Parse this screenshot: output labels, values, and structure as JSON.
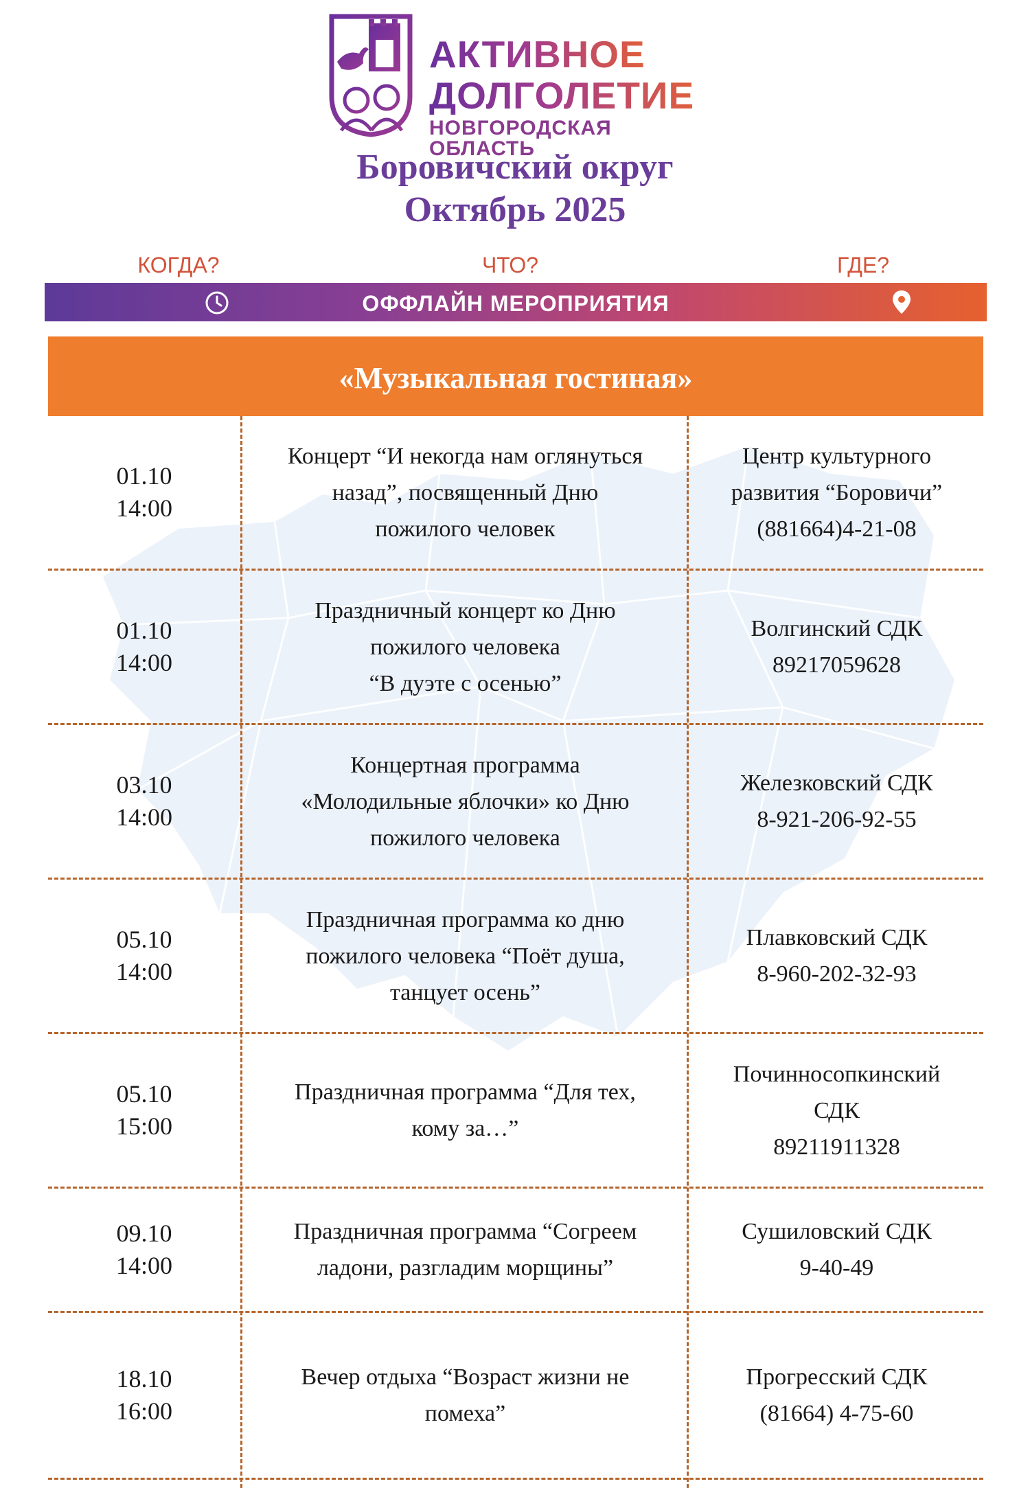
{
  "logo": {
    "line1": "АКТИВНОЕ",
    "line2": "ДОЛГОЛЕТИЕ",
    "line3": "НОВГОРОДСКАЯ ОБЛАСТЬ",
    "emblem_icon": "tower-bird-elderly-couple-emblem"
  },
  "title": {
    "district": "Боровичский округ",
    "month": "Октябрь 2025"
  },
  "header": {
    "when": "КОГДА?",
    "what": "ЧТО?",
    "where": "ГДЕ?",
    "offline": "ОФФЛАЙН МЕРОПРИЯТИЯ",
    "when_icon": "clock-icon",
    "where_icon": "map-pin-icon"
  },
  "section": {
    "title": "«Музыкальная гостиная»"
  },
  "events": [
    {
      "date": "01.10",
      "time": "14:00",
      "what": "Концерт “И некогда нам оглянуться\nназад”, посвященный Дню\nпожилого человек",
      "where": "Центр культурного\nразвития “Боровичи”\n(881664)4-21-08"
    },
    {
      "date": "01.10",
      "time": "14:00",
      "what": "Праздничный концерт ко Дню\nпожилого человека\n“В дуэте с осенью”",
      "where": "Волгинский СДК\n89217059628"
    },
    {
      "date": "03.10",
      "time": "14:00",
      "what": "Концертная программа\n«Молодильные яблочки» ко Дню\nпожилого человека",
      "where": "Железковский СДК\n8-921-206-92-55"
    },
    {
      "date": "05.10",
      "time": "14:00",
      "what": "Праздничная программа ко дню\nпожилого человека “Поёт душа,\nтанцует осень”",
      "where": "Плавковский СДК\n8-960-202-32-93"
    },
    {
      "date": "05.10",
      "time": "15:00",
      "what": "Праздничная программа “Для тех,\nкому за…”",
      "where": "Починносопкинский\nСДК\n89211911328"
    },
    {
      "date": "09.10",
      "time": "14:00",
      "what": "Праздничная программа “Согреем\nладони, разгладим морщины”",
      "where": "Сушиловский СДК\n9-40-49"
    },
    {
      "date": "18.10",
      "time": "16:00",
      "what": "Вечер отдыха “Возраст жизни не\nпомеха”",
      "where": "Прогресский СДК\n(81664) 4-75-60"
    }
  ]
}
